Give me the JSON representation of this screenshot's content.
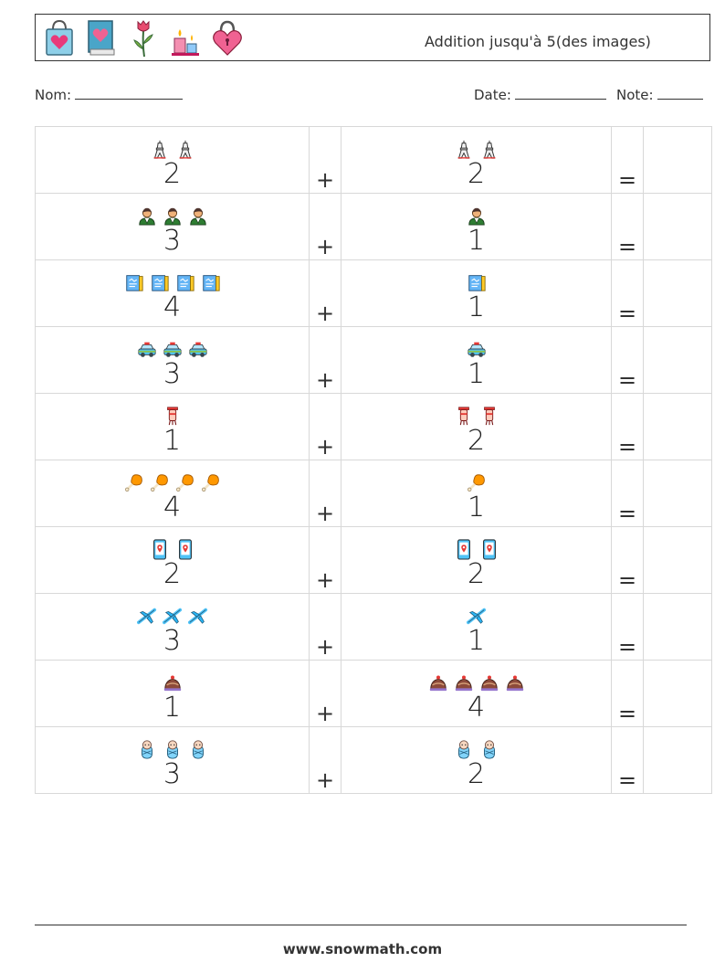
{
  "header": {
    "title": "Addition jusqu'à 5(des images)",
    "icons": [
      "shopping-bag-heart-icon",
      "love-book-icon",
      "rose-icon",
      "birthday-cake-icon",
      "heart-padlock-icon"
    ]
  },
  "fields": {
    "name_label": "Nom:",
    "date_label": "Date:",
    "note_label": "Note:"
  },
  "operators": {
    "plus": "+",
    "equals": "="
  },
  "rows": [
    {
      "icon": "eiffel-tower-icon",
      "a": 2,
      "b": 2,
      "a_text": "2",
      "b_text": "2"
    },
    {
      "icon": "person-icon",
      "a": 3,
      "b": 1,
      "a_text": "3",
      "b_text": "1"
    },
    {
      "icon": "book-icon",
      "a": 4,
      "b": 1,
      "a_text": "4",
      "b_text": "1"
    },
    {
      "icon": "car-icon",
      "a": 3,
      "b": 1,
      "a_text": "3",
      "b_text": "1"
    },
    {
      "icon": "lantern-icon",
      "a": 1,
      "b": 2,
      "a_text": "1",
      "b_text": "2"
    },
    {
      "icon": "chicken-leg-icon",
      "a": 4,
      "b": 1,
      "a_text": "4",
      "b_text": "1"
    },
    {
      "icon": "phone-map-icon",
      "a": 2,
      "b": 2,
      "a_text": "2",
      "b_text": "2"
    },
    {
      "icon": "airplane-icon",
      "a": 3,
      "b": 1,
      "a_text": "3",
      "b_text": "1"
    },
    {
      "icon": "cake-icon",
      "a": 1,
      "b": 4,
      "a_text": "1",
      "b_text": "4"
    },
    {
      "icon": "baby-icon",
      "a": 3,
      "b": 2,
      "a_text": "3",
      "b_text": "2"
    }
  ],
  "footer": {
    "url": "www.snowmath.com"
  }
}
